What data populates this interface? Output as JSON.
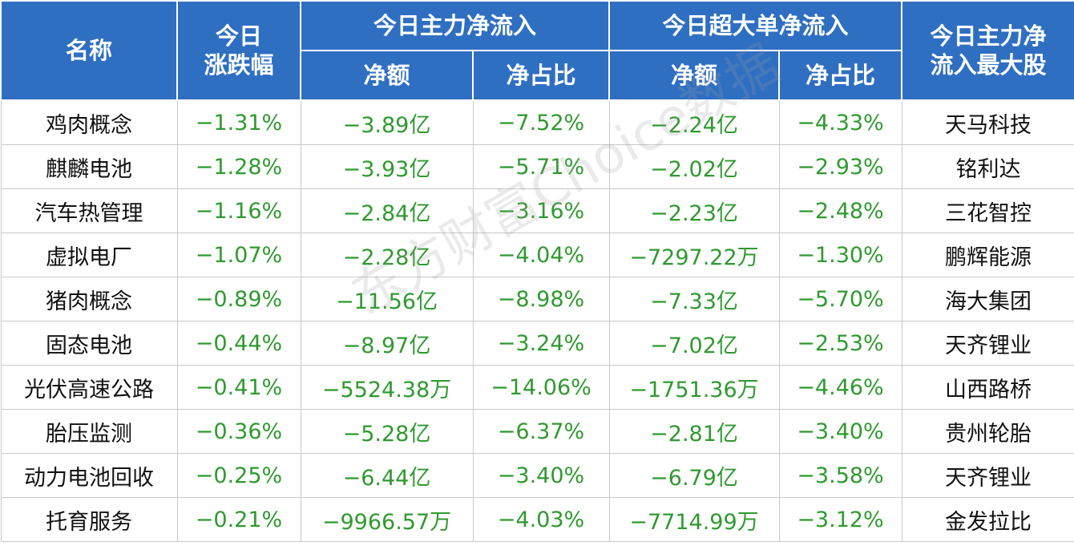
{
  "header": {
    "name": "名称",
    "change_line1": "今日",
    "change_line2": "涨跌幅",
    "main_group": "今日主力净流入",
    "super_group": "今日超大单净流入",
    "amount": "净额",
    "ratio": "净占比",
    "top_stock_line1": "今日主力净",
    "top_stock_line2": "流入最大股"
  },
  "rows": [
    {
      "name": "鸡肉概念",
      "change": "−1.31%",
      "main_amount": "−3.89亿",
      "main_ratio": "−7.52%",
      "super_amount": "−2.24亿",
      "super_ratio": "−4.33%",
      "top_stock": "天马科技"
    },
    {
      "name": "麒麟电池",
      "change": "−1.28%",
      "main_amount": "−3.93亿",
      "main_ratio": "−5.71%",
      "super_amount": "−2.02亿",
      "super_ratio": "−2.93%",
      "top_stock": "铭利达"
    },
    {
      "name": "汽车热管理",
      "change": "−1.16%",
      "main_amount": "−2.84亿",
      "main_ratio": "−3.16%",
      "super_amount": "−2.23亿",
      "super_ratio": "−2.48%",
      "top_stock": "三花智控"
    },
    {
      "name": "虚拟电厂",
      "change": "−1.07%",
      "main_amount": "−2.28亿",
      "main_ratio": "−4.04%",
      "super_amount": "−7297.22万",
      "super_ratio": "−1.30%",
      "top_stock": "鹏辉能源"
    },
    {
      "name": "猪肉概念",
      "change": "−0.89%",
      "main_amount": "−11.56亿",
      "main_ratio": "−8.98%",
      "super_amount": "−7.33亿",
      "super_ratio": "−5.70%",
      "top_stock": "海大集团"
    },
    {
      "name": "固态电池",
      "change": "−0.44%",
      "main_amount": "−8.97亿",
      "main_ratio": "−3.24%",
      "super_amount": "−7.02亿",
      "super_ratio": "−2.53%",
      "top_stock": "天齐锂业"
    },
    {
      "name": "光伏高速公路",
      "change": "−0.41%",
      "main_amount": "−5524.38万",
      "main_ratio": "−14.06%",
      "super_amount": "−1751.36万",
      "super_ratio": "−4.46%",
      "top_stock": "山西路桥"
    },
    {
      "name": "胎压监测",
      "change": "−0.36%",
      "main_amount": "−5.28亿",
      "main_ratio": "−6.37%",
      "super_amount": "−2.81亿",
      "super_ratio": "−3.40%",
      "top_stock": "贵州轮胎"
    },
    {
      "name": "动力电池回收",
      "change": "−0.25%",
      "main_amount": "−6.44亿",
      "main_ratio": "−3.40%",
      "super_amount": "−6.79亿",
      "super_ratio": "−3.58%",
      "top_stock": "天齐锂业"
    },
    {
      "name": "托育服务",
      "change": "−0.21%",
      "main_amount": "−9966.57万",
      "main_ratio": "−4.03%",
      "super_amount": "−7714.99万",
      "super_ratio": "−3.12%",
      "top_stock": "金发拉比"
    }
  ],
  "watermark": "东方财富Choice数据",
  "colors": {
    "header_bg": "#2f6fc2",
    "header_text": "#ffffff",
    "negative_value": "#2f9a2f",
    "body_text": "#111111",
    "grid": "#c8c8c8"
  }
}
